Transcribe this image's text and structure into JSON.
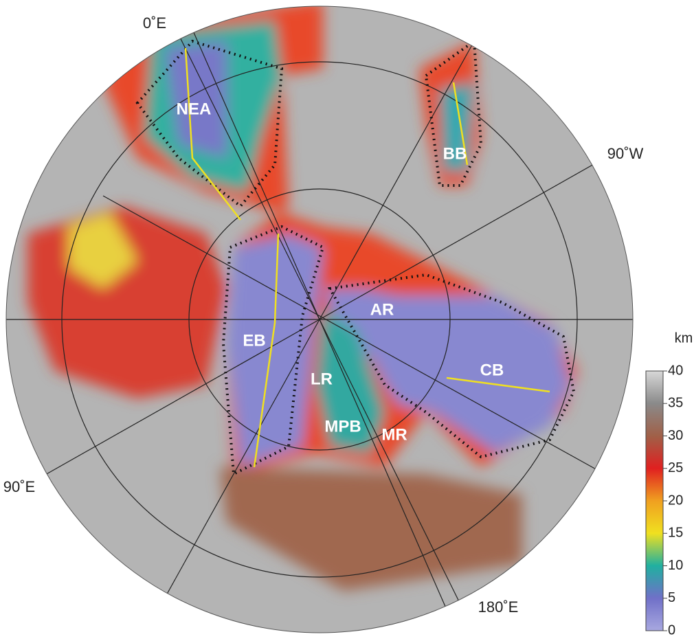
{
  "map": {
    "meridian_labels": [
      "0˚E",
      "90˚W",
      "90˚E",
      "180˚E"
    ],
    "regions": [
      "NEA",
      "BB",
      "EB",
      "LR",
      "AR",
      "MPB",
      "MR",
      "CB"
    ]
  },
  "colorbar": {
    "unit": "km",
    "range": [
      0,
      40
    ],
    "ticks": [
      0,
      5,
      10,
      15,
      20,
      25,
      30,
      35,
      40
    ],
    "colors": [
      "#a8a8e0",
      "#7070c8",
      "#20b0a0",
      "#f0e020",
      "#f0a020",
      "#e02020",
      "#a06048",
      "#8a8a8a",
      "#d8d8d8"
    ]
  }
}
